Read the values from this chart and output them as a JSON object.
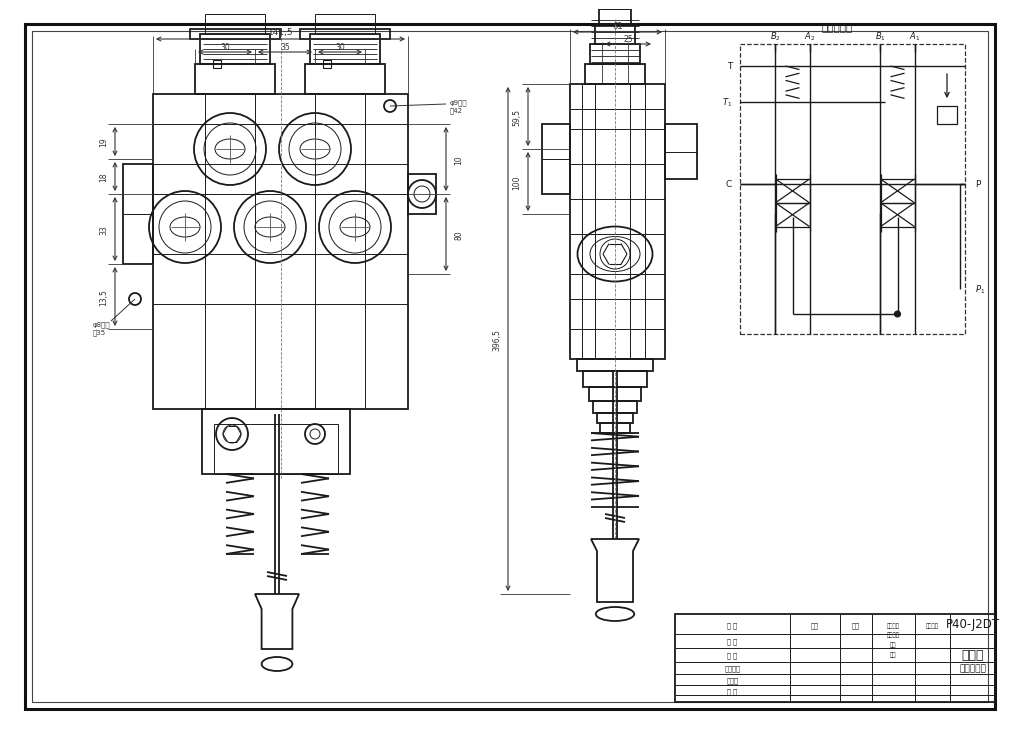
{
  "bg_color": "#ffffff",
  "line_color": "#1a1a1a",
  "dim_color": "#333333",
  "table_model": "P40-J2DT",
  "table_name": "多路阀",
  "table_subtitle": "外形尺寸图",
  "schematic_title": "液压原理图",
  "label_phi9": "φ9螺孔",
  "label_h42": "高42",
  "label_phi8": "φ8螺孔",
  "label_h35": "高35",
  "dim_141": "141,5",
  "dim_30a": "30",
  "dim_35": "35",
  "dim_30b": "30",
  "dim_19": "19",
  "dim_18": "18",
  "dim_33": "33",
  "dim_135": "13,5",
  "dim_10": "10",
  "dim_80": "80",
  "dim_61": "61",
  "dim_25": "25",
  "dim_595": "59,5",
  "dim_100": "100",
  "dim_3965": "396,5"
}
